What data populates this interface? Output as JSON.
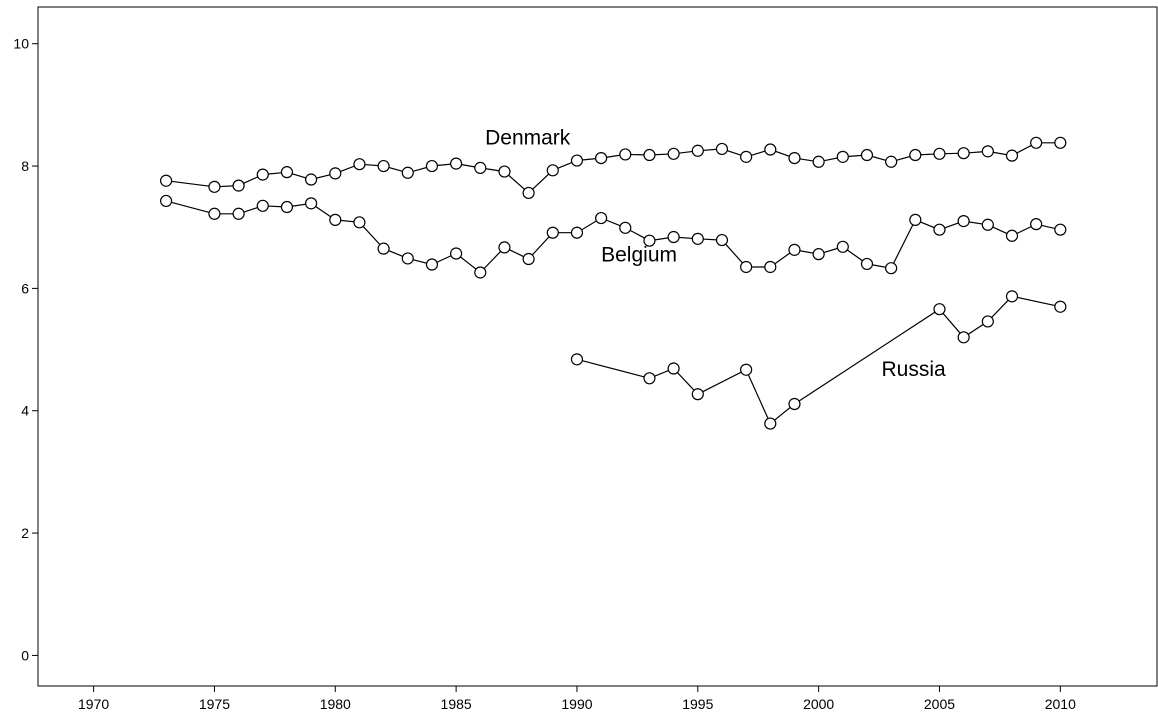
{
  "chart_data": {
    "type": "line",
    "xlim": [
      1967.7,
      2014
    ],
    "ylim": [
      -0.5,
      10.6
    ],
    "x_ticks": [
      1970,
      1975,
      1980,
      1985,
      1990,
      1995,
      2000,
      2005,
      2010
    ],
    "y_ticks": [
      0,
      2,
      4,
      6,
      8,
      10
    ],
    "grid": false,
    "series": [
      {
        "name": "Denmark",
        "x": [
          1973,
          1975,
          1976,
          1977,
          1978,
          1979,
          1980,
          1981,
          1982,
          1983,
          1984,
          1985,
          1986,
          1987,
          1988,
          1989,
          1990,
          1991,
          1992,
          1993,
          1994,
          1995,
          1996,
          1997,
          1998,
          1999,
          2000,
          2001,
          2002,
          2003,
          2004,
          2005,
          2006,
          2007,
          2008,
          2009,
          2010
        ],
        "y": [
          7.76,
          7.66,
          7.68,
          7.86,
          7.9,
          7.78,
          7.88,
          8.03,
          8.0,
          7.89,
          8.0,
          8.04,
          7.97,
          7.91,
          7.56,
          7.93,
          8.09,
          8.13,
          8.19,
          8.18,
          8.2,
          8.25,
          8.28,
          8.15,
          8.27,
          8.13,
          8.07,
          8.15,
          8.18,
          8.07,
          8.18,
          8.2,
          8.21,
          8.24,
          8.17,
          8.38,
          8.38
        ]
      },
      {
        "name": "Belgium",
        "x": [
          1973,
          1975,
          1976,
          1977,
          1978,
          1979,
          1980,
          1981,
          1982,
          1983,
          1984,
          1985,
          1986,
          1987,
          1988,
          1989,
          1990,
          1991,
          1992,
          1993,
          1994,
          1995,
          1996,
          1997,
          1998,
          1999,
          2000,
          2001,
          2002,
          2003,
          2004,
          2005,
          2006,
          2007,
          2008,
          2009,
          2010
        ],
        "y": [
          7.43,
          7.22,
          7.22,
          7.35,
          7.33,
          7.39,
          7.12,
          7.08,
          6.65,
          6.49,
          6.39,
          6.57,
          6.26,
          6.67,
          6.48,
          6.91,
          6.91,
          7.15,
          6.99,
          6.78,
          6.84,
          6.81,
          6.79,
          6.35,
          6.35,
          6.63,
          6.56,
          6.68,
          6.4,
          6.33,
          7.12,
          6.96,
          7.1,
          7.04,
          6.86,
          7.05,
          6.96
        ]
      },
      {
        "name": "Russia",
        "x": [
          1990,
          1993,
          1994,
          1995,
          1997,
          1998,
          1999,
          2005,
          2006,
          2007,
          2008,
          2010
        ],
        "y": [
          4.84,
          4.53,
          4.69,
          4.27,
          4.67,
          3.79,
          4.11,
          5.66,
          5.2,
          5.46,
          5.87,
          5.7
        ]
      }
    ],
    "annotations": [
      {
        "text": "Denmark",
        "x": 1986.2,
        "y": 8.35
      },
      {
        "text": "Belgium",
        "x": 1991.0,
        "y": 6.44
      },
      {
        "text": "Russia",
        "x": 2002.6,
        "y": 4.57
      }
    ]
  }
}
